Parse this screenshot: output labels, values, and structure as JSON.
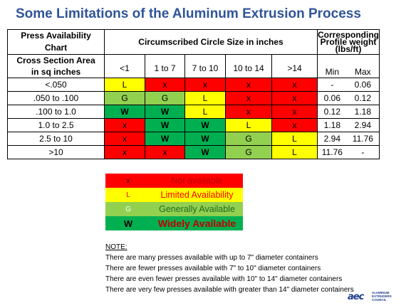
{
  "title": "Some Limitations of the Aluminum Extrusion Process",
  "table": {
    "press_title_1": "Press Availability",
    "press_title_2": "Chart",
    "circle_header": "Circumscribed Circle Size in inches",
    "weight_header_1": "Corresponding",
    "weight_header_2": "Profile weight",
    "weight_header_3": "(lbs/ft)",
    "csa_header_1": "Cross Section Area",
    "csa_header_2": "in sq inches",
    "size_cols": [
      "<1",
      "1 to 7",
      "7 to 10",
      "10 to 14",
      ">14"
    ],
    "min_label": "Min",
    "max_label": "Max",
    "rows": [
      {
        "label": "<.050",
        "cells": [
          "L",
          "x",
          "x",
          "x",
          "x"
        ],
        "classes": [
          "Y",
          "R",
          "R",
          "R",
          "R"
        ],
        "min": "-",
        "max": "0.06"
      },
      {
        "label": ".050 to .100",
        "cells": [
          "G",
          "G",
          "L",
          "x",
          "x"
        ],
        "classes": [
          "G",
          "G",
          "Y",
          "R",
          "R"
        ],
        "min": "0.06",
        "max": "0.12"
      },
      {
        "label": ".100 to 1.0",
        "cells": [
          "W",
          "W",
          "L",
          "x",
          "x"
        ],
        "classes": [
          "W",
          "W",
          "Y",
          "R",
          "R"
        ],
        "min": "0.12",
        "max": "1.18"
      },
      {
        "label": "1.0 to 2.5",
        "cells": [
          "x",
          "W",
          "W",
          "L",
          "x"
        ],
        "classes": [
          "R",
          "W",
          "W",
          "Y",
          "R"
        ],
        "min": "1.18",
        "max": "2.94"
      },
      {
        "label": "2.5 to 10",
        "cells": [
          "x",
          "W",
          "W",
          "G",
          "L"
        ],
        "classes": [
          "R",
          "W",
          "W",
          "G",
          "Y"
        ],
        "min": "2.94",
        "max": "11.76"
      },
      {
        "label": ">10",
        "cells": [
          "x",
          "x",
          "W",
          "G",
          "L"
        ],
        "classes": [
          "R",
          "R",
          "W",
          "G",
          "Y"
        ],
        "min": "11.76",
        "max": "-"
      }
    ]
  },
  "legend": [
    {
      "symbol": "x",
      "text": "Not available",
      "cls": "R"
    },
    {
      "symbol": "L",
      "text": "Limited Availability",
      "cls": "Y"
    },
    {
      "symbol": "G",
      "text": "Generally Available",
      "cls": "G"
    },
    {
      "symbol": "W",
      "text": "Widely Available",
      "cls": "W"
    }
  ],
  "notes": {
    "heading": "NOTE:",
    "lines": [
      "There are many presses available with up to 7\" diameter containers",
      "There are fewer presses available with 7\" to 10\" diameter containers",
      "There are even fewer presses available with 10\" to 14\" diameter containers",
      "There are very few presses available with greater than 14\" diameter containers"
    ]
  },
  "logo": {
    "mark": "aec",
    "line1": "ALUMINUM",
    "line2": "EXTRUDERS",
    "line3": "COUNCIL"
  }
}
